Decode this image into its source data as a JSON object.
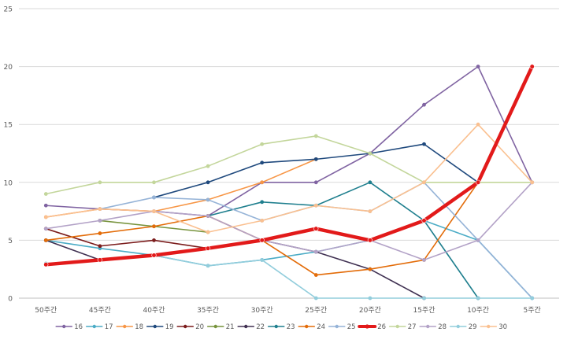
{
  "chart_data": {
    "type": "line",
    "title": "",
    "xlabel": "",
    "ylabel": "",
    "ylim": [
      0,
      25
    ],
    "yticks": [
      0,
      5,
      10,
      15,
      20,
      25
    ],
    "grid": true,
    "legend_position": "bottom",
    "categories": [
      "50주간",
      "45주간",
      "40주간",
      "35주간",
      "30주간",
      "25주간",
      "20주간",
      "15주간",
      "10주간",
      "5주간"
    ],
    "series": [
      {
        "name": "16",
        "color": "#8064A2",
        "highlight": false,
        "values": [
          8,
          7.7,
          7.5,
          7.1,
          10,
          10,
          12.5,
          16.7,
          20,
          10
        ]
      },
      {
        "name": "17",
        "color": "#4BACC6",
        "highlight": false,
        "values": [
          5,
          4.3,
          3.7,
          2.8,
          3.3,
          4,
          5,
          6.7,
          5,
          0
        ]
      },
      {
        "name": "18",
        "color": "#F79646",
        "highlight": false,
        "values": [
          7,
          7.7,
          7.5,
          8.5,
          10,
          12,
          null,
          null,
          null,
          null
        ]
      },
      {
        "name": "19",
        "color": "#1F497D",
        "highlight": false,
        "values": [
          null,
          null,
          8.7,
          10,
          11.7,
          12,
          12.5,
          13.3,
          10,
          null
        ]
      },
      {
        "name": "20",
        "color": "#7B1C1C",
        "highlight": false,
        "values": [
          6,
          4.5,
          5,
          4.3,
          null,
          null,
          null,
          null,
          null,
          null
        ]
      },
      {
        "name": "21",
        "color": "#77933C",
        "highlight": false,
        "values": [
          null,
          6.7,
          6.2,
          5.7,
          null,
          null,
          null,
          null,
          null,
          null
        ]
      },
      {
        "name": "22",
        "color": "#403152",
        "highlight": false,
        "values": [
          5,
          3.3,
          null,
          4.3,
          5,
          4,
          2.5,
          0,
          null,
          null
        ]
      },
      {
        "name": "23",
        "color": "#1F7F8E",
        "highlight": false,
        "values": [
          null,
          null,
          null,
          7.1,
          8.3,
          8,
          10,
          6.7,
          0,
          null
        ]
      },
      {
        "name": "24",
        "color": "#E36C09",
        "highlight": false,
        "values": [
          5,
          5.6,
          6.2,
          7.1,
          5,
          2,
          2.5,
          3.3,
          10,
          null
        ]
      },
      {
        "name": "25",
        "color": "#95B3D7",
        "highlight": false,
        "values": [
          null,
          7.7,
          8.7,
          8.5,
          6.7,
          8,
          7.5,
          10,
          5,
          0
        ]
      },
      {
        "name": "26",
        "color": "#E21A1A",
        "highlight": true,
        "values": [
          2.9,
          3.3,
          3.7,
          4.3,
          5,
          6,
          5,
          6.7,
          10,
          20
        ]
      },
      {
        "name": "27",
        "color": "#C3D69B",
        "highlight": false,
        "values": [
          9,
          10,
          10,
          11.4,
          13.3,
          14,
          12.5,
          10,
          10,
          10
        ]
      },
      {
        "name": "28",
        "color": "#B3A2C7",
        "highlight": false,
        "values": [
          6,
          6.7,
          7.5,
          7.1,
          5,
          4,
          5,
          3.3,
          5,
          10
        ]
      },
      {
        "name": "29",
        "color": "#92CDDC",
        "highlight": false,
        "values": [
          3,
          null,
          3.7,
          2.8,
          3.3,
          0,
          0,
          0,
          0,
          0
        ]
      },
      {
        "name": "30",
        "color": "#FAC090",
        "highlight": false,
        "values": [
          7,
          7.7,
          7.5,
          5.7,
          6.7,
          8,
          7.5,
          10,
          15,
          10
        ]
      }
    ]
  }
}
